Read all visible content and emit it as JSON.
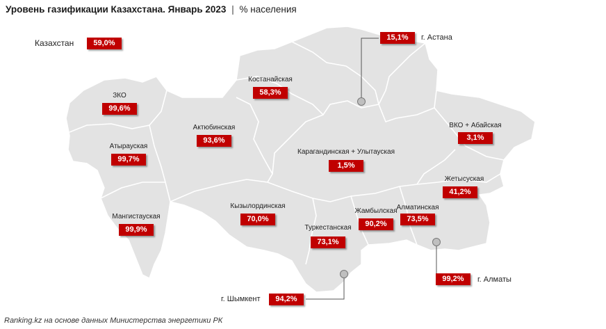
{
  "header": {
    "title": "Уровень газификации Казахстана. Январь 2023",
    "separator": "|",
    "unit": "% населения"
  },
  "kazakhstan": {
    "label": "Казахстан",
    "value": "59,0%"
  },
  "regions": [
    {
      "id": "zko",
      "name": "ЗКО",
      "value": "99,6%"
    },
    {
      "id": "atyrau",
      "name": "Атырауская",
      "value": "99,7%"
    },
    {
      "id": "mangystau",
      "name": "Мангистауская",
      "value": "99,9%"
    },
    {
      "id": "aktobe",
      "name": "Актюбинская",
      "value": "93,6%"
    },
    {
      "id": "kostanay",
      "name": "Костанайская",
      "value": "58,3%"
    },
    {
      "id": "kyzylorda",
      "name": "Кызылординская",
      "value": "70,0%"
    },
    {
      "id": "karaganda",
      "name": "Карагандинская + Улытауская",
      "value": "1,5%"
    },
    {
      "id": "turkestan",
      "name": "Туркестанская",
      "value": "73,1%"
    },
    {
      "id": "zhambyl",
      "name": "Жамбылская",
      "value": "90,2%"
    },
    {
      "id": "almaty",
      "name": "Алматинская",
      "value": "73,5%"
    },
    {
      "id": "zhetysu",
      "name": "Жетысуская",
      "value": "41,2%"
    },
    {
      "id": "vko",
      "name": "ВКО + Абайская",
      "value": "3,1%"
    }
  ],
  "cities": [
    {
      "id": "astana",
      "name": "г. Астана",
      "value": "15,1%"
    },
    {
      "id": "almaty-city",
      "name": "г. Алматы",
      "value": "99,2%"
    },
    {
      "id": "shymkent",
      "name": "г. Шымкент",
      "value": "94,2%"
    }
  ],
  "footer": {
    "source": "Ranking.kz на основе данных Министерства энергетики РК"
  },
  "colors": {
    "map_fill": "#e3e3e3",
    "border": "#ffffff",
    "badge": "#c00000",
    "marker": "#bfbfbf",
    "leader": "#555555"
  }
}
